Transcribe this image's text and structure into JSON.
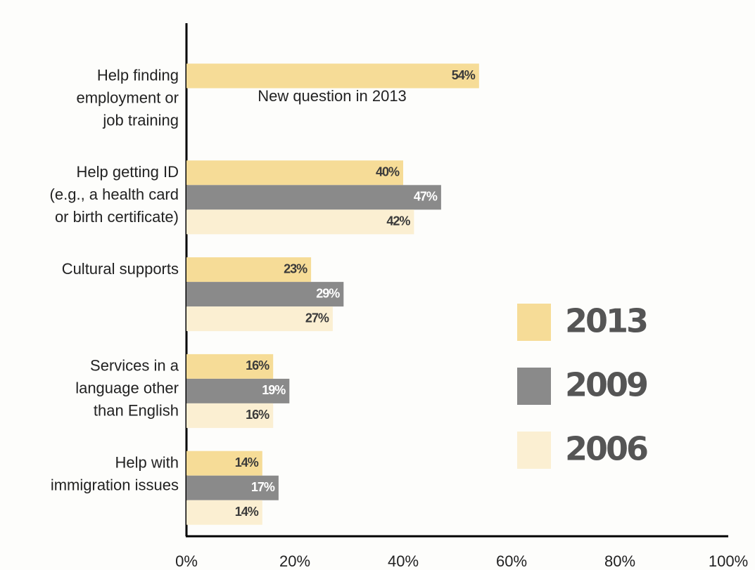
{
  "chart_data": {
    "type": "barh",
    "categories": [
      [
        "Help finding",
        "employment or",
        "job training"
      ],
      [
        "Help getting ID",
        "(e.g., a health card",
        "or birth certificate)"
      ],
      [
        "Cultural supports"
      ],
      [
        "Services in a",
        "language other",
        "than English"
      ],
      [
        "Help with",
        "immigration issues"
      ]
    ],
    "series": [
      {
        "name": "2013",
        "color": "#f6dc97",
        "values": [
          54,
          40,
          23,
          16,
          14
        ],
        "value_labels": [
          "54%",
          "40%",
          "23%",
          "16%",
          "14%"
        ]
      },
      {
        "name": "2009",
        "color": "#8a8a8a",
        "values": [
          null,
          47,
          29,
          19,
          17
        ],
        "value_labels": [
          null,
          "47%",
          "29%",
          "19%",
          "17%"
        ]
      },
      {
        "name": "2006",
        "color": "#fbefd2",
        "values": [
          null,
          42,
          27,
          16,
          14
        ],
        "value_labels": [
          null,
          "42%",
          "27%",
          "16%",
          "14%"
        ]
      }
    ],
    "annotations": [
      "New question in 2013"
    ],
    "xlim": [
      0,
      100
    ],
    "xticks": [
      {
        "value": 0,
        "label": "0%"
      },
      {
        "value": 20,
        "label": "20%"
      },
      {
        "value": 40,
        "label": "40%"
      },
      {
        "value": 60,
        "label": "60%"
      },
      {
        "value": 80,
        "label": "80%"
      },
      {
        "value": 100,
        "label": "100%"
      }
    ],
    "legend": "right"
  }
}
